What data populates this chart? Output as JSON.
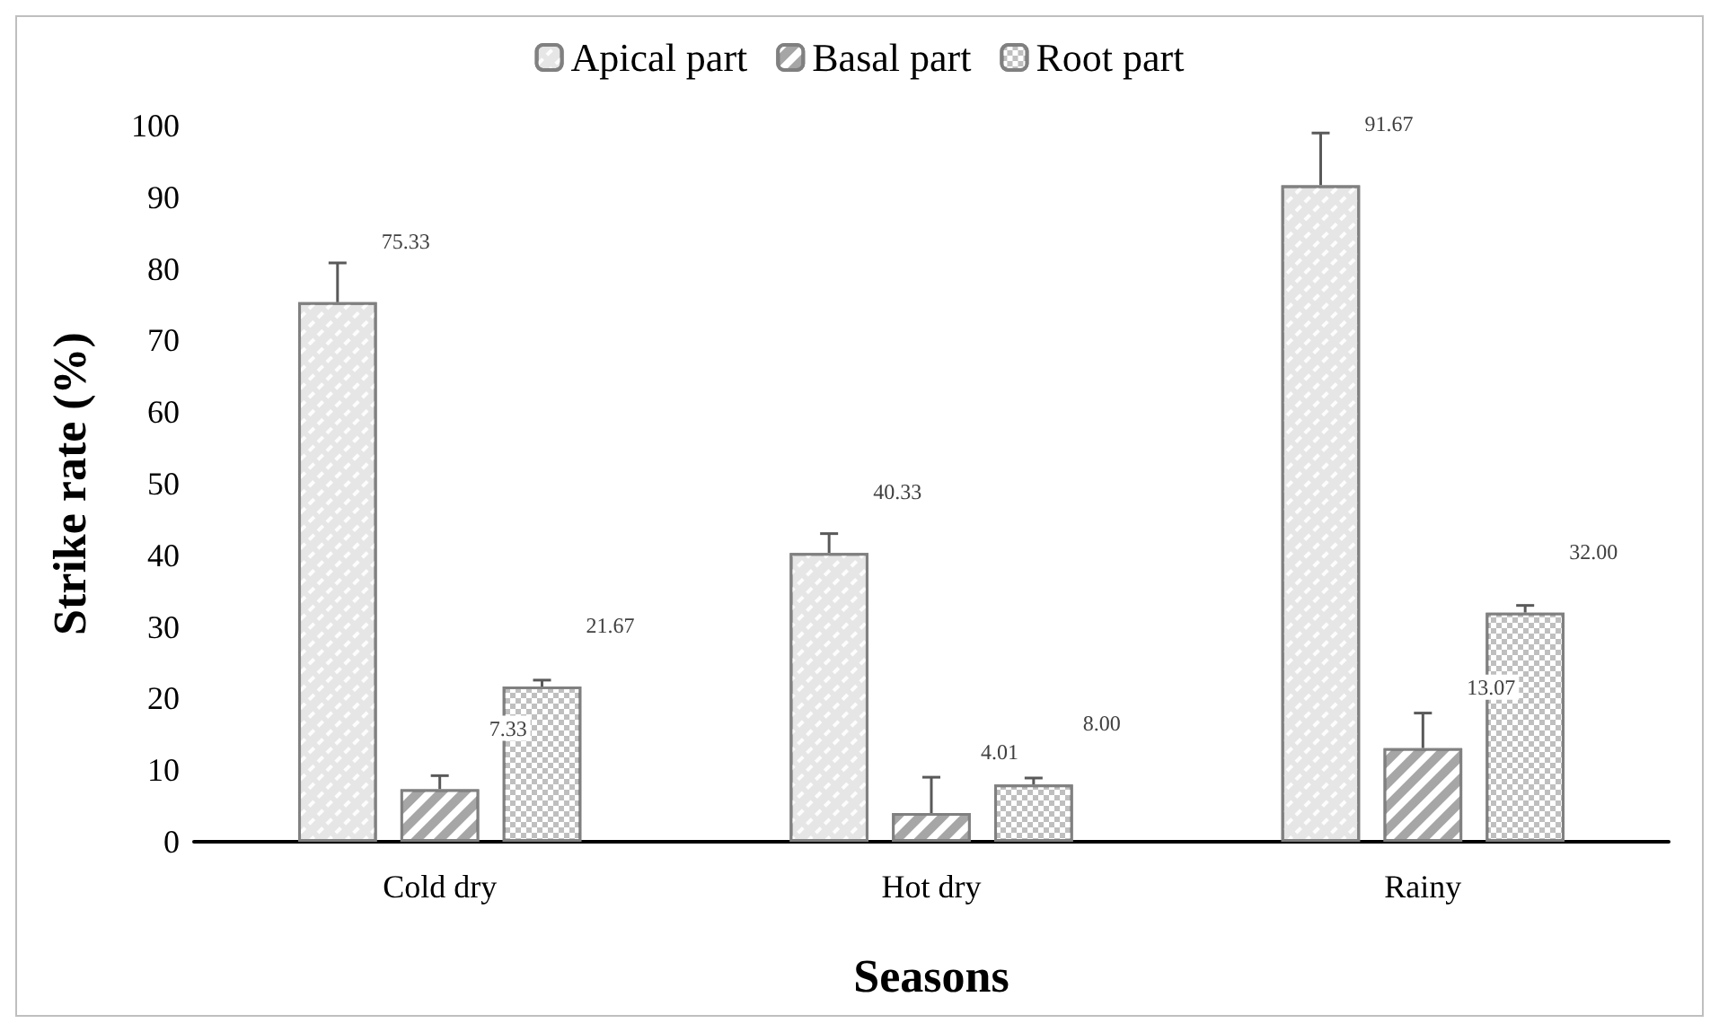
{
  "chart_data": {
    "type": "bar",
    "xlabel": "Seasons",
    "ylabel": "Strike rate (%)",
    "categories": [
      "Cold dry",
      "Hot dry",
      "Rainy"
    ],
    "series": [
      {
        "name": "Apical part",
        "color": "#e6e6e6",
        "values": [
          75.33,
          40.33,
          91.67
        ],
        "errors": [
          5.5,
          2.7,
          7.3
        ]
      },
      {
        "name": "Basal part",
        "color": "#a6a6a6",
        "values": [
          7.33,
          4.01,
          13.07
        ],
        "errors": [
          1.9,
          5.0,
          4.9
        ]
      },
      {
        "name": "Root part",
        "color": "#bfbfbf",
        "values": [
          21.67,
          8.0,
          32.0
        ],
        "errors": [
          0.9,
          0.9,
          1.0
        ]
      }
    ],
    "value_labels": [
      [
        "75.33",
        "40.33",
        "91.67"
      ],
      [
        "7.33",
        "4.01",
        "13.07"
      ],
      [
        "21.67",
        "8.00",
        "32.00"
      ]
    ],
    "ylim": [
      0,
      100
    ],
    "yticks": [
      0,
      10,
      20,
      30,
      40,
      50,
      60,
      70,
      80,
      90,
      100
    ],
    "grid": false,
    "legend": "top"
  }
}
